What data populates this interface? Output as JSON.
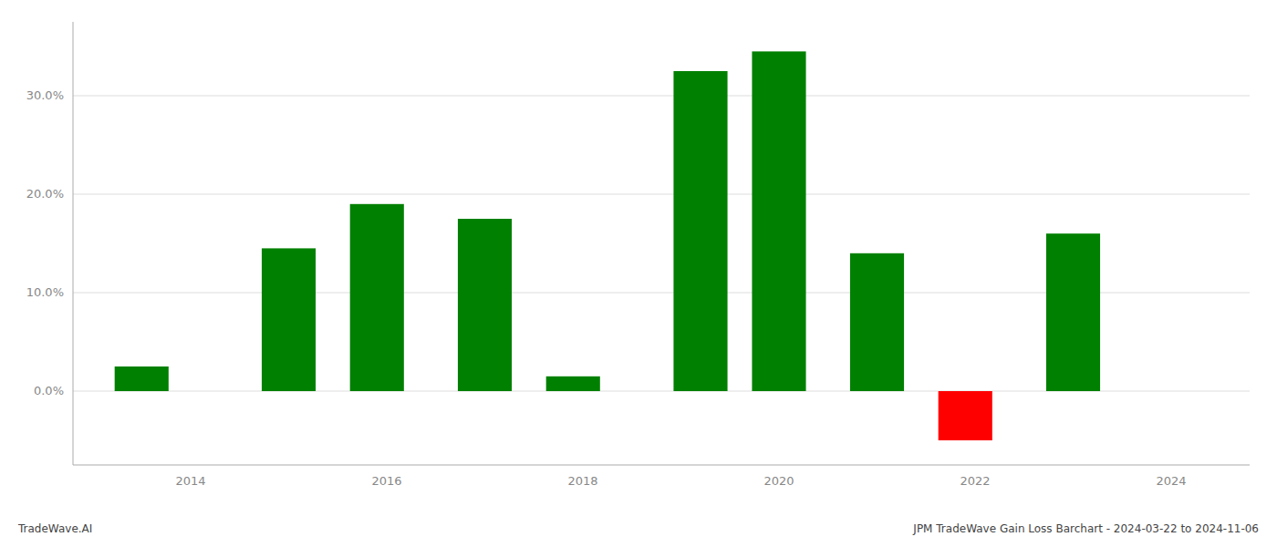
{
  "chart_data": {
    "type": "bar",
    "x": [
      2013.5,
      2015.0,
      2015.9,
      2017.0,
      2017.9,
      2019.2,
      2020.0,
      2021.0,
      2021.9,
      2023.0
    ],
    "values": [
      0.025,
      0.145,
      0.19,
      0.175,
      0.015,
      0.325,
      0.345,
      0.14,
      -0.05,
      0.16
    ],
    "colors": [
      "#008000",
      "#008000",
      "#008000",
      "#008000",
      "#008000",
      "#008000",
      "#008000",
      "#008000",
      "#ff0000",
      "#008000"
    ],
    "xlim": [
      2012.8,
      2024.8
    ],
    "ylim": [
      -0.075,
      0.375
    ],
    "xticks": [
      2014,
      2016,
      2018,
      2020,
      2022,
      2024
    ],
    "yticks": [
      {
        "value": 0.0,
        "label": "0.0%"
      },
      {
        "value": 0.1,
        "label": "10.0%"
      },
      {
        "value": 0.2,
        "label": "20.0%"
      },
      {
        "value": 0.3,
        "label": "30.0%"
      }
    ],
    "grid": true,
    "annotations": [
      "TradeWave.AI",
      "JPM TradeWave Gain Loss Barchart - 2024-03-22 to 2024-11-06"
    ]
  }
}
